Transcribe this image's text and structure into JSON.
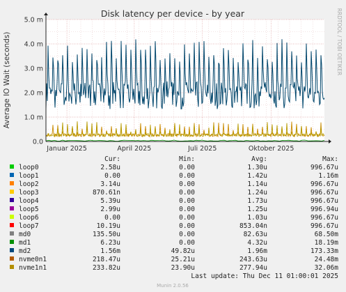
{
  "chart_data": {
    "type": "line",
    "title": "Disk latency per device - by year",
    "ylabel": "Average IO Wait (seconds)",
    "side_label": "RRDTOOL / TOBI OETIKER",
    "y_ticks": [
      "0.0",
      "1.0 m",
      "2.0 m",
      "3.0 m",
      "4.0 m",
      "5.0 m"
    ],
    "y_tick_values": [
      0,
      1,
      2,
      3,
      4,
      5
    ],
    "y_unit": "milliseconds",
    "ylim": [
      0,
      5
    ],
    "x_ticks": [
      "Januar 2025",
      "April 2025",
      "Juli 2025",
      "Oktober 2025"
    ],
    "x_tick_dates": [
      "2025-01-01",
      "2025-04-01",
      "2025-07-01",
      "2025-10-01"
    ],
    "x_range": [
      "2024-12-04",
      "2025-12-11"
    ],
    "grid": true,
    "series": [
      {
        "name": "md2",
        "color": "#00456b",
        "approx_baseline": 1.9,
        "approx_peak": 4.0
      },
      {
        "name": "nvme0n1",
        "color": "#c98a00",
        "approx_baseline": 0.25,
        "approx_peak": 0.8
      },
      {
        "name": "nvme1n1",
        "color": "#b79a00",
        "approx_baseline": 0.25,
        "approx_peak": 0.8
      }
    ]
  },
  "legend": {
    "headers": {
      "cur": "Cur:",
      "min": "Min:",
      "avg": "Avg:",
      "max": "Max:"
    },
    "rows": [
      {
        "name": "loop0",
        "color": "#00cc00",
        "cur": "2.58u",
        "min": "0.00",
        "avg": "1.30u",
        "max": "996.67u"
      },
      {
        "name": "loop1",
        "color": "#0066b3",
        "cur": "0.00",
        "min": "0.00",
        "avg": "1.42u",
        "max": "1.16m"
      },
      {
        "name": "loop2",
        "color": "#ff8000",
        "cur": "3.14u",
        "min": "0.00",
        "avg": "1.14u",
        "max": "996.67u"
      },
      {
        "name": "loop3",
        "color": "#ffcc00",
        "cur": "870.61n",
        "min": "0.00",
        "avg": "1.24u",
        "max": "996.67u"
      },
      {
        "name": "loop4",
        "color": "#330099",
        "cur": "5.39u",
        "min": "0.00",
        "avg": "1.73u",
        "max": "996.67u"
      },
      {
        "name": "loop5",
        "color": "#990099",
        "cur": "2.99u",
        "min": "0.00",
        "avg": "1.25u",
        "max": "996.94u"
      },
      {
        "name": "loop6",
        "color": "#ccff00",
        "cur": "0.00",
        "min": "0.00",
        "avg": "1.03u",
        "max": "996.67u"
      },
      {
        "name": "loop7",
        "color": "#ff0000",
        "cur": "10.19u",
        "min": "0.00",
        "avg": "853.04n",
        "max": "996.67u"
      },
      {
        "name": "md0",
        "color": "#808080",
        "cur": "135.50u",
        "min": "0.00",
        "avg": "82.63u",
        "max": "68.50m"
      },
      {
        "name": "md1",
        "color": "#008f00",
        "cur": "6.23u",
        "min": "0.00",
        "avg": "4.32u",
        "max": "18.19m"
      },
      {
        "name": "md2",
        "color": "#00487d",
        "cur": "1.56m",
        "min": "49.82u",
        "avg": "1.96m",
        "max": "173.33m"
      },
      {
        "name": "nvme0n1",
        "color": "#b35a00",
        "cur": "218.47u",
        "min": "25.21u",
        "avg": "243.63u",
        "max": "24.48m"
      },
      {
        "name": "nvme1n1",
        "color": "#b38f00",
        "cur": "233.82u",
        "min": "23.90u",
        "avg": "277.94u",
        "max": "32.06m"
      }
    ]
  },
  "last_update": "Last update: Thu Dec 11 01:00:01 2025",
  "footer": "Munin 2.0.56"
}
